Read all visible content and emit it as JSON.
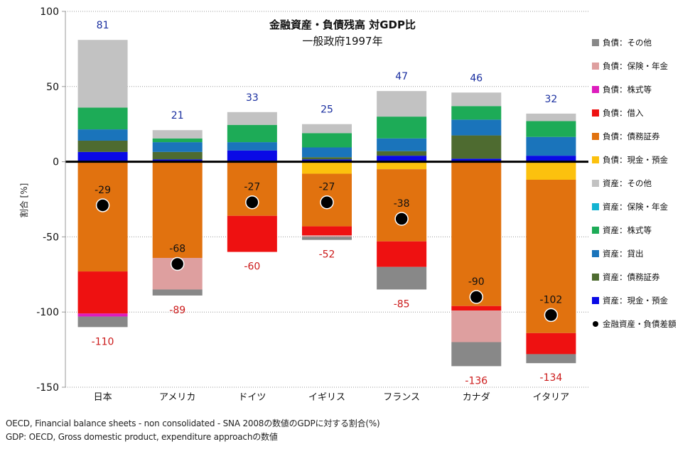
{
  "chart_data": {
    "type": "bar",
    "title": "金融資産・負債残高 対GDP比",
    "subtitle": "一般政府1997年",
    "ylabel": "割合 [%]",
    "ylim": [
      -150,
      100
    ],
    "yticks": [
      100,
      50,
      0,
      -50,
      -100,
      -150
    ],
    "grid": true,
    "legend_position": "right",
    "categories": [
      "日本",
      "アメリカ",
      "ドイツ",
      "イギリス",
      "フランス",
      "カナダ",
      "イタリア"
    ],
    "asset_totals": [
      81,
      21,
      33,
      25,
      47,
      46,
      32
    ],
    "liability_totals": [
      -110,
      -89,
      -60,
      -52,
      -85,
      -136,
      -134
    ],
    "net_values": [
      -29,
      -68,
      -27,
      -27,
      -38,
      -90,
      -102
    ],
    "asset_series": [
      {
        "name": "資産：現金・預金",
        "color": "#0a0ae6",
        "values": [
          6.5,
          1.5,
          7.5,
          1.5,
          4,
          2,
          4
        ]
      },
      {
        "name": "資産：債務証券",
        "color": "#4e6b30",
        "values": [
          7.5,
          5,
          0,
          1.5,
          3,
          15.5,
          0
        ]
      },
      {
        "name": "資産：貸出",
        "color": "#1a74bb",
        "values": [
          7.5,
          6.5,
          5.5,
          6.5,
          8.5,
          10.5,
          12.5
        ]
      },
      {
        "name": "資産：株式等",
        "color": "#1dab57",
        "values": [
          14.5,
          2.5,
          11.5,
          9.5,
          14.5,
          9,
          10.5
        ]
      },
      {
        "name": "資産：保険・年金",
        "color": "#14b4d2",
        "values": [
          0,
          0,
          0,
          0,
          0,
          0,
          0
        ]
      },
      {
        "name": "資産：その他",
        "color": "#c2c2c2",
        "values": [
          45,
          5.5,
          8.5,
          6,
          17,
          9,
          5
        ]
      }
    ],
    "liability_series": [
      {
        "name": "負債：現金・預金",
        "color": "#fcc10e",
        "values": [
          0,
          0,
          0,
          -8,
          -5,
          0,
          -12
        ]
      },
      {
        "name": "負債：債務証券",
        "color": "#e1720f",
        "values": [
          -73,
          -64,
          -36,
          -35,
          -48,
          -96,
          -102
        ]
      },
      {
        "name": "負債：借入",
        "color": "#ee1111",
        "values": [
          -28,
          0,
          -24,
          -6,
          -17,
          -3,
          -14
        ]
      },
      {
        "name": "負債：株式等",
        "color": "#dd1dbd",
        "values": [
          -2,
          0,
          0,
          0,
          0,
          0,
          0
        ]
      },
      {
        "name": "負債：保険・年金",
        "color": "#de9f9f",
        "values": [
          0,
          -21,
          0,
          -1,
          0,
          -21,
          0
        ]
      },
      {
        "name": "負債：その他",
        "color": "#888888",
        "values": [
          -7,
          -4,
          0,
          -2,
          -15,
          -16,
          -6
        ]
      }
    ],
    "net_series": {
      "name": "金融資産・負債差額",
      "color": "#000000"
    },
    "legend_order": [
      "負債：その他",
      "負債：保険・年金",
      "負債：株式等",
      "負債：借入",
      "負債：債務証券",
      "負債：現金・預金",
      "資産：その他",
      "資産：保険・年金",
      "資産：株式等",
      "資産：貸出",
      "資産：債務証券",
      "資産：現金・預金",
      "金融資産・負債差額"
    ],
    "label_colors": {
      "asset": "#1a2fa0",
      "liability": "#cc1a1a",
      "net": "#111111"
    }
  },
  "source_lines": [
    "OECD, Financial balance sheets -  non consolidated - SNA 2008の数値のGDPに対する割合(%)",
    "GDP: OECD, Gross domestic product, expenditure approachの数値"
  ]
}
